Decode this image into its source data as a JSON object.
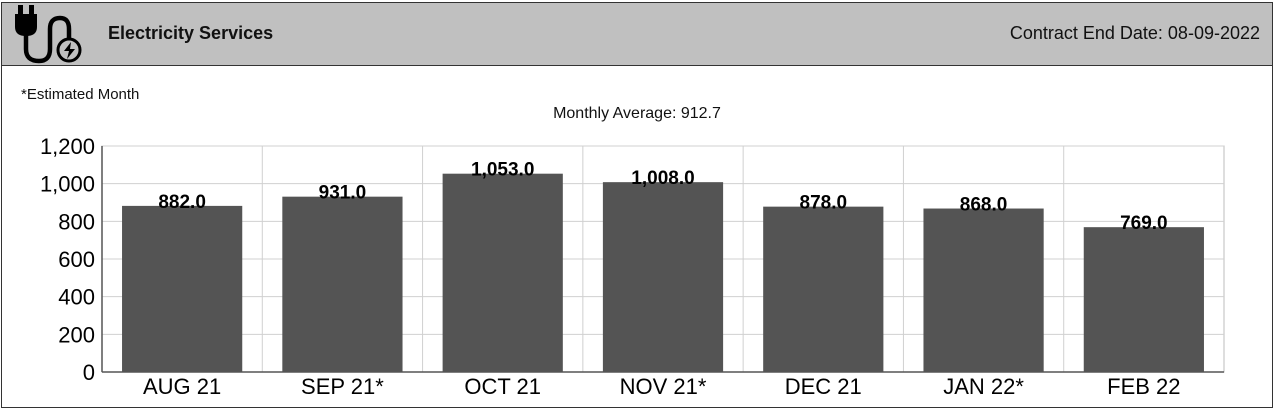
{
  "header": {
    "title": "Electricity Services",
    "contract_end": "Contract End Date: 08-09-2022",
    "icon": "electric-plug-icon"
  },
  "note": "*Estimated Month",
  "colors": {
    "bar": "#545454",
    "header_bg": "#c0c0c0",
    "grid": "#d0d0d0"
  },
  "chart_data": {
    "type": "bar",
    "title": "Monthly Average: 912.7",
    "categories": [
      "AUG 21",
      "SEP 21*",
      "OCT 21",
      "NOV 21*",
      "DEC 21",
      "JAN 22*",
      "FEB 22"
    ],
    "values": [
      882.0,
      931.0,
      1053.0,
      1008.0,
      878.0,
      868.0,
      769.0
    ],
    "value_labels": [
      "882.0",
      "931.0",
      "1,053.0",
      "1,008.0",
      "878.0",
      "868.0",
      "769.0"
    ],
    "ylim": [
      0,
      1200
    ],
    "yticks": [
      0,
      200,
      400,
      600,
      800,
      1000,
      1200
    ],
    "ytick_labels": [
      "0",
      "200",
      "400",
      "600",
      "800",
      "1,000",
      "1,200"
    ],
    "grid": true,
    "xlabel": "",
    "ylabel": ""
  }
}
